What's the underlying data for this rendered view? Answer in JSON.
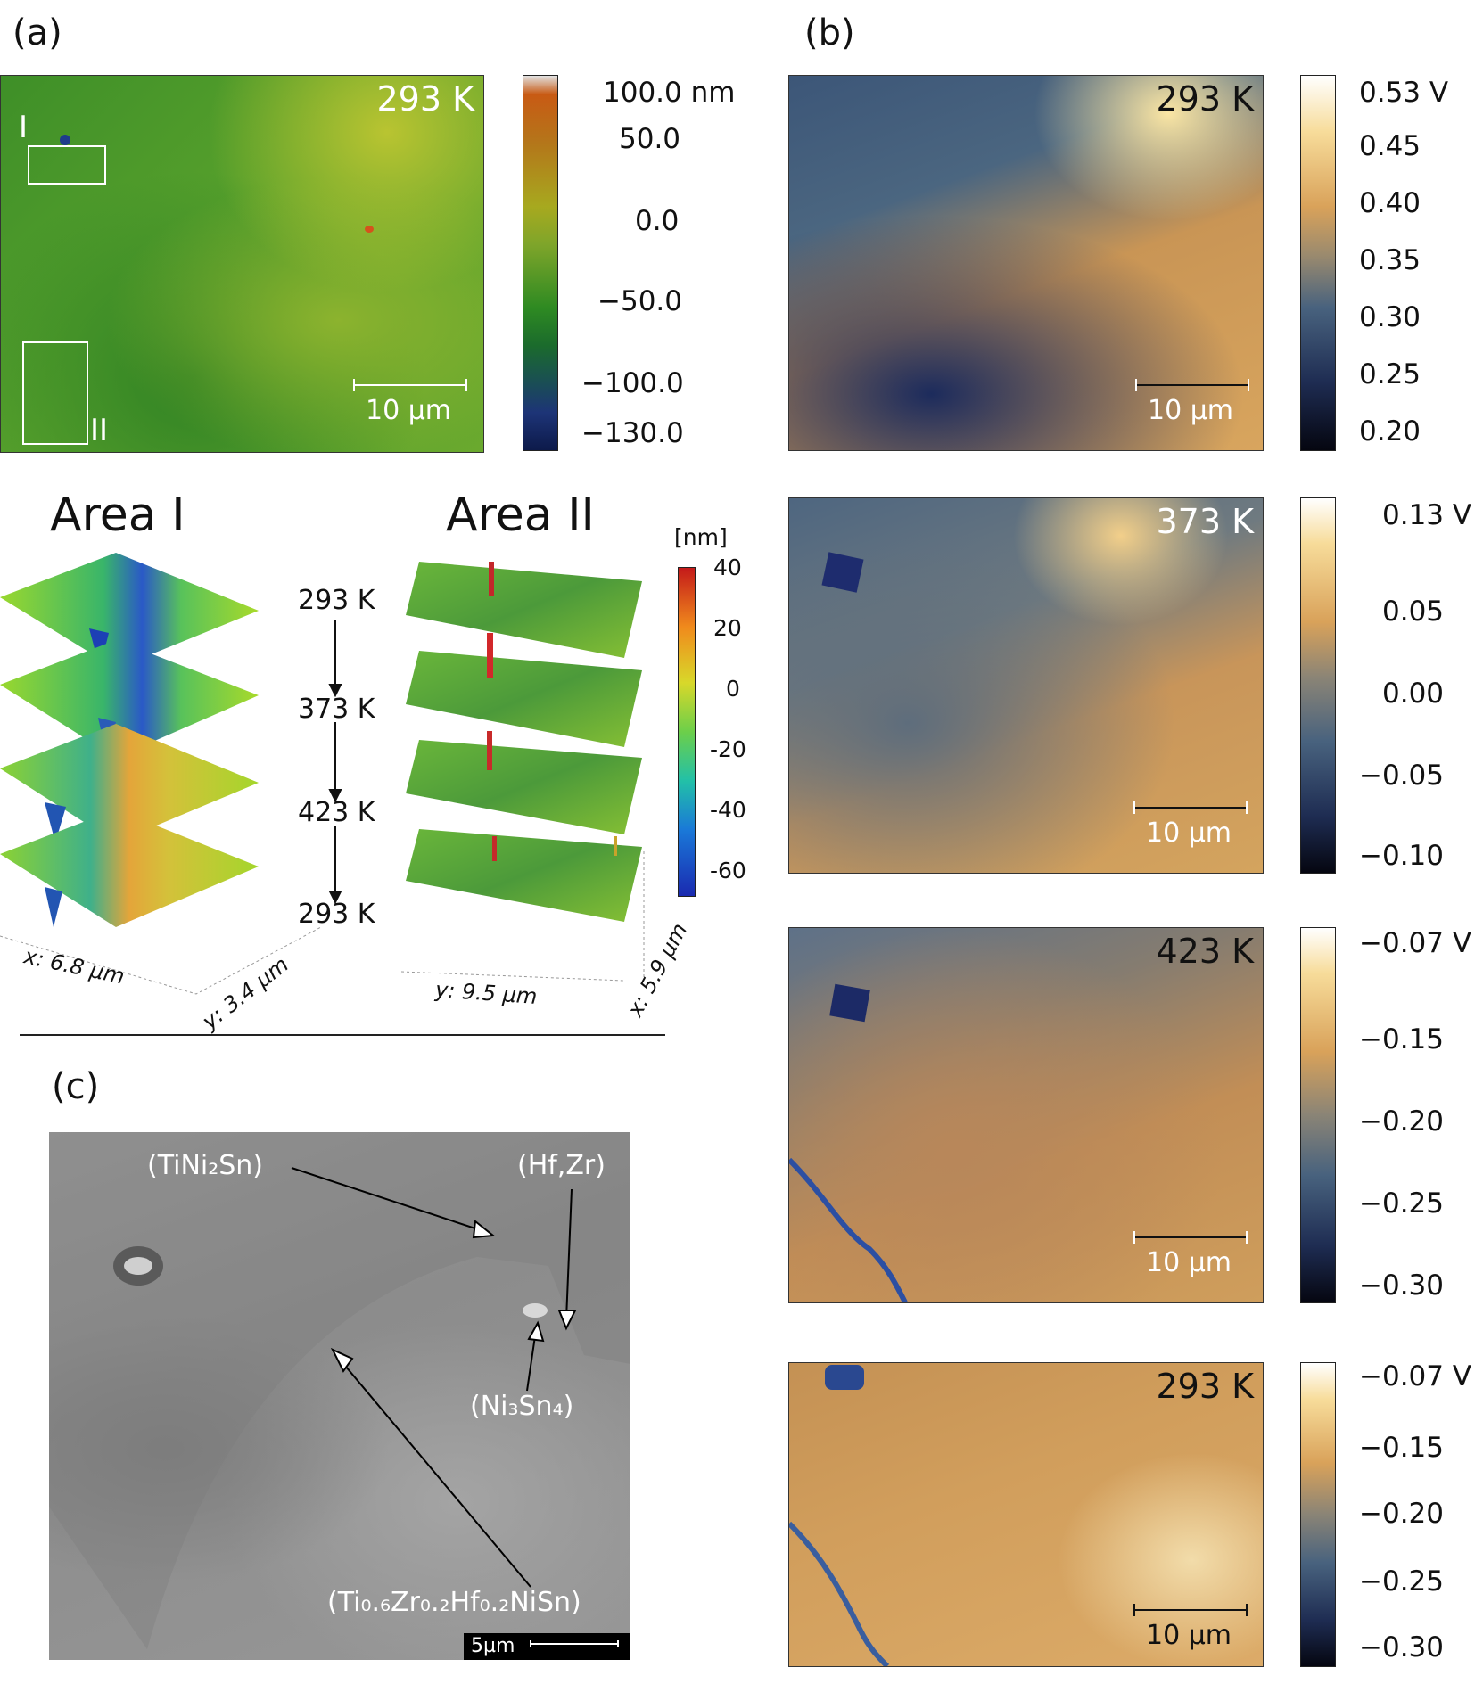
{
  "panel_a": {
    "label": "(a)",
    "temperature": "293 K",
    "box_label_1": "I",
    "box_label_2": "II",
    "scale_label": "10 µm",
    "colorbar_ticks": [
      "100.0 nm",
      "50.0",
      "0.0",
      "−50.0",
      "−100.0",
      "−130.0"
    ],
    "area_1_title": "Area I",
    "area_2_title": "Area II",
    "sequence": [
      "293 K",
      "373 K",
      "423 K",
      "293 K"
    ],
    "height_unit": "[nm]",
    "height_ticks": [
      "40",
      "20",
      "0",
      "-20",
      "-40",
      "-60"
    ],
    "area_1_x_axis": "x: 6.8 µm",
    "area_1_y_axis": "y: 3.4 µm",
    "area_2_y_axis": "y: 9.5 µm",
    "area_2_x_axis": "x: 5.9 µm"
  },
  "panel_b": {
    "label": "(b)",
    "maps": [
      {
        "temperature": "293 K",
        "scale_label": "10 µm",
        "ticks": [
          "0.53 V",
          "0.45",
          "0.40",
          "0.35",
          "0.30",
          "0.25",
          "0.20"
        ]
      },
      {
        "temperature": "373 K",
        "scale_label": "10 µm",
        "ticks": [
          "0.13 V",
          "0.05",
          "0.00",
          "−0.05",
          "−0.10"
        ]
      },
      {
        "temperature": "423 K",
        "scale_label": "10 µm",
        "ticks": [
          "−0.07 V",
          "−0.15",
          "−0.20",
          "−0.25",
          "−0.30"
        ]
      },
      {
        "temperature": "293 K",
        "scale_label": "10 µm",
        "ticks": [
          "−0.07 V",
          "−0.15",
          "−0.20",
          "−0.25",
          "−0.30"
        ]
      }
    ]
  },
  "panel_c": {
    "label": "(c)",
    "phase_1": "(TiNi₂Sn)",
    "phase_2": "(Hf,Zr)",
    "phase_3": "(Ni₃Sn₄)",
    "phase_4": "(Ti₀.₆Zr₀.₂Hf₀.₂NiSn)",
    "scale_label": "5µm"
  },
  "colors": {
    "height_map": "#4a9a2a",
    "kpfm_dark": "#1d2c55",
    "kpfm_light": "#d9a65c",
    "sem_gray": "#8f8f8f"
  }
}
